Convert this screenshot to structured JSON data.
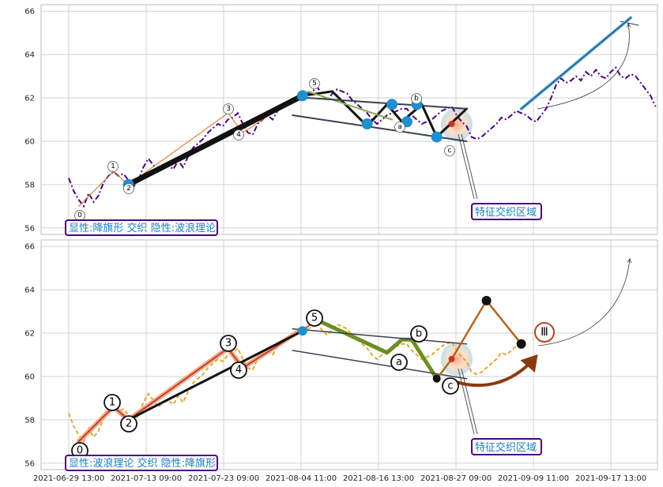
{
  "chart_data": [
    {
      "type": "line",
      "panel": "top",
      "ylim": [
        55.7,
        66.3
      ],
      "yticks": [
        "56",
        "58",
        "60",
        "62",
        "64",
        "66"
      ],
      "grid": true,
      "annotation_box": "显性:降旗形 交织 隐性:波浪理论",
      "zone_label": "特征交织区域",
      "wave_labels": [
        "0",
        "1",
        "2",
        "3",
        "4",
        "5",
        "a",
        "b",
        "c"
      ],
      "price_series": {
        "color": "#4b0082",
        "style": "dashdot",
        "x": [
          0.0,
          0.5,
          1.0,
          1.5,
          2.0,
          2.5,
          3.0,
          3.5,
          4.0,
          4.5,
          5.0,
          5.5,
          6.0,
          6.5,
          7.0,
          7.5,
          8.0,
          8.5,
          9.0,
          9.5,
          10.0,
          10.5,
          11.0,
          11.5,
          12.0,
          12.5,
          13.0,
          13.5,
          14.0,
          14.5,
          15.0,
          15.5,
          16.0,
          16.5,
          17.0,
          17.5,
          18.0,
          18.5,
          19.0,
          19.5,
          20.0,
          20.5,
          21.0,
          21.5,
          22.0,
          22.5,
          23.0,
          23.5,
          24.0,
          24.5,
          25.0,
          25.5,
          26.0,
          26.5,
          27.0,
          27.5,
          28.0,
          28.5,
          29.0,
          29.5,
          30.0,
          30.5,
          31.0,
          31.5,
          32.0,
          32.5,
          33.0,
          33.5,
          34.0,
          34.5,
          35.0,
          35.5,
          36.0,
          36.5,
          37.0,
          37.5,
          38.0,
          38.5,
          39.0,
          39.5,
          40.0,
          40.5,
          41.0,
          41.5,
          42.0,
          42.5,
          43.0,
          43.5,
          44.0,
          44.5,
          45.0,
          45.5,
          46.0,
          46.5,
          47.0,
          47.5,
          48.0,
          48.5,
          49.0,
          49.5,
          50.0,
          50.5,
          51.0,
          51.5,
          52.0,
          52.5,
          53.0,
          53.5,
          54.0,
          54.5,
          55.0,
          55.5,
          56.0,
          56.5,
          57.0,
          57.5,
          58.0,
          58.5,
          59.0
        ],
        "y": [
          58.3,
          57.7,
          57.3,
          57.0,
          57.6,
          57.2,
          57.5,
          58.1,
          58.4,
          58.6,
          58.4,
          58.5,
          58.2,
          57.9,
          58.2,
          58.8,
          59.2,
          58.9,
          58.6,
          58.8,
          58.9,
          58.7,
          59.1,
          58.8,
          59.3,
          59.7,
          59.9,
          60.1,
          60.4,
          60.6,
          60.8,
          60.7,
          61.0,
          61.1,
          61.3,
          60.8,
          60.4,
          60.3,
          60.8,
          61.0,
          61.2,
          61.0,
          61.4,
          61.6,
          61.8,
          61.9,
          62.0,
          62.1,
          62.2,
          62.3,
          62.5,
          62.1,
          61.9,
          62.2,
          62.4,
          62.3,
          62.2,
          61.9,
          61.7,
          61.5,
          61.3,
          61.0,
          60.8,
          61.0,
          61.2,
          61.3,
          61.4,
          61.5,
          61.5,
          61.2,
          61.0,
          60.8,
          60.9,
          61.0,
          61.2,
          61.4,
          61.5,
          61.6,
          61.2,
          60.9,
          60.7,
          60.2,
          60.1,
          60.2,
          60.4,
          60.6,
          60.8,
          61.1,
          61.0,
          61.2,
          61.4,
          61.3,
          61.2,
          61.0,
          60.9,
          61.2,
          61.5,
          62.0,
          62.6,
          62.9,
          62.7,
          62.8,
          63.0,
          62.8,
          63.2,
          63.0,
          63.3,
          63.0,
          62.9,
          63.2,
          63.4,
          63.0,
          62.9,
          63.1,
          63.0,
          62.7,
          62.4,
          62.1,
          61.6
        ]
      },
      "segments": [
        {
          "x": [
            1.0,
            4.5,
            6.0,
            16.0,
            17.5,
            23.5
          ],
          "y": [
            57.0,
            58.6,
            58.0,
            61.3,
            60.4,
            62.2
          ],
          "color": "#d2691e",
          "width": 1
        },
        {
          "x": [
            6.0,
            23.5
          ],
          "y": [
            58.0,
            62.1
          ],
          "color": "#111111",
          "width": 7
        },
        {
          "x": [
            23.5,
            26.5,
            30.0,
            32.0,
            33.5,
            35.5
          ],
          "y": [
            62.1,
            62.3,
            60.7,
            61.7,
            60.9,
            61.7
          ],
          "color": "#111111",
          "width": 3
        },
        {
          "x": [
            35.5,
            37.0,
            40.0
          ],
          "y": [
            61.7,
            60.2,
            61.5
          ],
          "color": "#111111",
          "width": 3
        },
        {
          "x": [
            24.0,
            32.5
          ],
          "y": [
            62.3,
            61.0
          ],
          "color": "#8faa55",
          "width": 2
        },
        {
          "x": [
            22.5,
            40.0
          ],
          "y": [
            61.2,
            60.0
          ],
          "color": "#3a4050",
          "width": 2
        },
        {
          "x": [
            24.0,
            40.0
          ],
          "y": [
            62.0,
            61.5
          ],
          "color": "#3a4050",
          "width": 2
        },
        {
          "x": [
            45.5,
            56.5
          ],
          "y": [
            61.5,
            65.7
          ],
          "color": "#5aaee0",
          "width": 4
        },
        {
          "x": [
            45.5,
            56.5
          ],
          "y": [
            61.5,
            65.7
          ],
          "color": "#1a3a5a",
          "width": 1
        }
      ],
      "markers": [
        {
          "x": 6.0,
          "y": 58.0,
          "color": "#1e90d0",
          "size": 7
        },
        {
          "x": 23.5,
          "y": 62.1,
          "color": "#1e90d0",
          "size": 7
        },
        {
          "x": 30.0,
          "y": 60.8,
          "color": "#1e90d0",
          "size": 7
        },
        {
          "x": 32.5,
          "y": 61.7,
          "color": "#1e90d0",
          "size": 7
        },
        {
          "x": 34.0,
          "y": 60.9,
          "color": "#1e90d0",
          "size": 7
        },
        {
          "x": 35.0,
          "y": 61.7,
          "color": "#1e90d0",
          "size": 7
        },
        {
          "x": 37.0,
          "y": 60.2,
          "color": "#1e90d0",
          "size": 7
        },
        {
          "x": 38.5,
          "y": 60.8,
          "color": "#c0392b",
          "size": 4
        }
      ]
    },
    {
      "type": "line",
      "panel": "bottom",
      "ylim": [
        55.7,
        66.3
      ],
      "yticks": [
        "56",
        "58",
        "60",
        "62",
        "64",
        "66"
      ],
      "grid": true,
      "annotation_box": "显性:波浪理论 交织 隐性:降旗形",
      "zone_label": "特征交织区域",
      "wave_labels": [
        "0",
        "1",
        "2",
        "3",
        "4",
        "5",
        "a",
        "b",
        "c"
      ],
      "projection_label": "Ⅲ",
      "xtick_labels": [
        "2021-06-29 13:00",
        "2021-07-13 09:00",
        "2021-07-23 09:00",
        "2021-08-04 11:00",
        "2021-08-16 13:00",
        "2021-08-27 09:00",
        "2021-09-09 11:00",
        "2021-09-17 13:00"
      ],
      "price_series": {
        "color": "#e6a832",
        "style": "dashed",
        "x": [
          0.0,
          0.5,
          1.0,
          1.5,
          2.0,
          2.5,
          3.0,
          3.5,
          4.0,
          4.5,
          5.0,
          5.5,
          6.0,
          6.5,
          7.0,
          7.5,
          8.0,
          8.5,
          9.0,
          9.5,
          10.0,
          10.5,
          11.0,
          11.5,
          12.0,
          12.5,
          13.0,
          13.5,
          14.0,
          14.5,
          15.0,
          15.5,
          16.0,
          16.5,
          17.0,
          17.5,
          18.0,
          18.5,
          19.0,
          19.5,
          20.0,
          20.5,
          21.0,
          21.5,
          22.0,
          22.5,
          23.0,
          23.5,
          24.0,
          24.5,
          25.0,
          25.5,
          26.0,
          26.5,
          27.0,
          27.5,
          28.0,
          28.5,
          29.0,
          29.5,
          30.0,
          30.5,
          31.0,
          31.5,
          32.0,
          32.5,
          33.0,
          33.5,
          34.0,
          34.5,
          35.0,
          35.5,
          36.0,
          36.5,
          37.0,
          37.5,
          38.0,
          38.5,
          39.0,
          39.5,
          40.0,
          40.5,
          41.0,
          41.5,
          42.0,
          42.5,
          43.0,
          43.5,
          44.0,
          44.5,
          45.0
        ],
        "y": [
          58.3,
          57.7,
          57.3,
          57.0,
          57.6,
          57.2,
          57.5,
          58.1,
          58.4,
          58.6,
          58.4,
          58.5,
          58.2,
          57.9,
          58.2,
          58.8,
          59.2,
          58.9,
          58.6,
          58.8,
          58.9,
          58.7,
          59.1,
          58.8,
          59.3,
          59.7,
          59.9,
          60.1,
          60.4,
          60.6,
          60.8,
          60.7,
          61.0,
          61.1,
          61.3,
          60.8,
          60.4,
          60.3,
          60.8,
          61.0,
          61.2,
          61.0,
          61.4,
          61.6,
          61.8,
          61.9,
          62.0,
          62.1,
          62.2,
          62.3,
          62.5,
          62.1,
          61.9,
          62.2,
          62.4,
          62.3,
          62.2,
          61.9,
          61.7,
          61.5,
          61.3,
          61.0,
          60.8,
          61.0,
          61.2,
          61.3,
          61.4,
          61.5,
          61.5,
          61.2,
          61.0,
          60.8,
          60.9,
          61.0,
          61.2,
          61.4,
          61.5,
          61.6,
          61.2,
          60.9,
          60.7,
          60.2,
          60.1,
          60.2,
          60.4,
          60.6,
          60.8,
          61.1,
          61.0,
          61.2,
          61.4
        ]
      },
      "segments": [
        {
          "x": [
            1.0,
            4.5,
            6.0,
            16.0,
            17.5,
            23.5
          ],
          "y": [
            57.0,
            58.6,
            58.0,
            61.3,
            60.4,
            62.2
          ],
          "color": "#f4a582",
          "width": 6
        },
        {
          "x": [
            1.0,
            4.5,
            6.0,
            16.0,
            17.5,
            25.0
          ],
          "y": [
            57.0,
            58.6,
            58.0,
            61.3,
            60.4,
            62.6
          ],
          "color": "#b03020",
          "width": 1.5
        },
        {
          "x": [
            6.0,
            23.5
          ],
          "y": [
            58.0,
            62.1
          ],
          "color": "#111111",
          "width": 3
        },
        {
          "x": [
            25.0,
            32.0,
            33.5,
            34.5,
            37.0
          ],
          "y": [
            62.6,
            61.1,
            61.7,
            61.7,
            59.9
          ],
          "color": "#6b8e23",
          "width": 5
        },
        {
          "x": [
            22.5,
            40.0
          ],
          "y": [
            61.2,
            59.9
          ],
          "color": "#3a4050",
          "width": 1.5
        },
        {
          "x": [
            22.5,
            40.0
          ],
          "y": [
            62.2,
            61.5
          ],
          "color": "#3a4050",
          "width": 1.5
        },
        {
          "x": [
            37.0,
            38.5,
            42.0,
            45.5
          ],
          "y": [
            59.9,
            60.8,
            63.5,
            61.5
          ],
          "color": "#b5651d",
          "width": 2.5
        }
      ],
      "markers": [
        {
          "x": 23.5,
          "y": 62.1,
          "color": "#1e90d0",
          "size": 6
        },
        {
          "x": 37.0,
          "y": 59.9,
          "color": "#111111",
          "size": 5
        },
        {
          "x": 42.0,
          "y": 63.5,
          "color": "#111111",
          "size": 6
        },
        {
          "x": 45.5,
          "y": 61.5,
          "color": "#111111",
          "size": 6
        },
        {
          "x": 38.5,
          "y": 60.8,
          "color": "#c0392b",
          "size": 4
        }
      ]
    }
  ]
}
